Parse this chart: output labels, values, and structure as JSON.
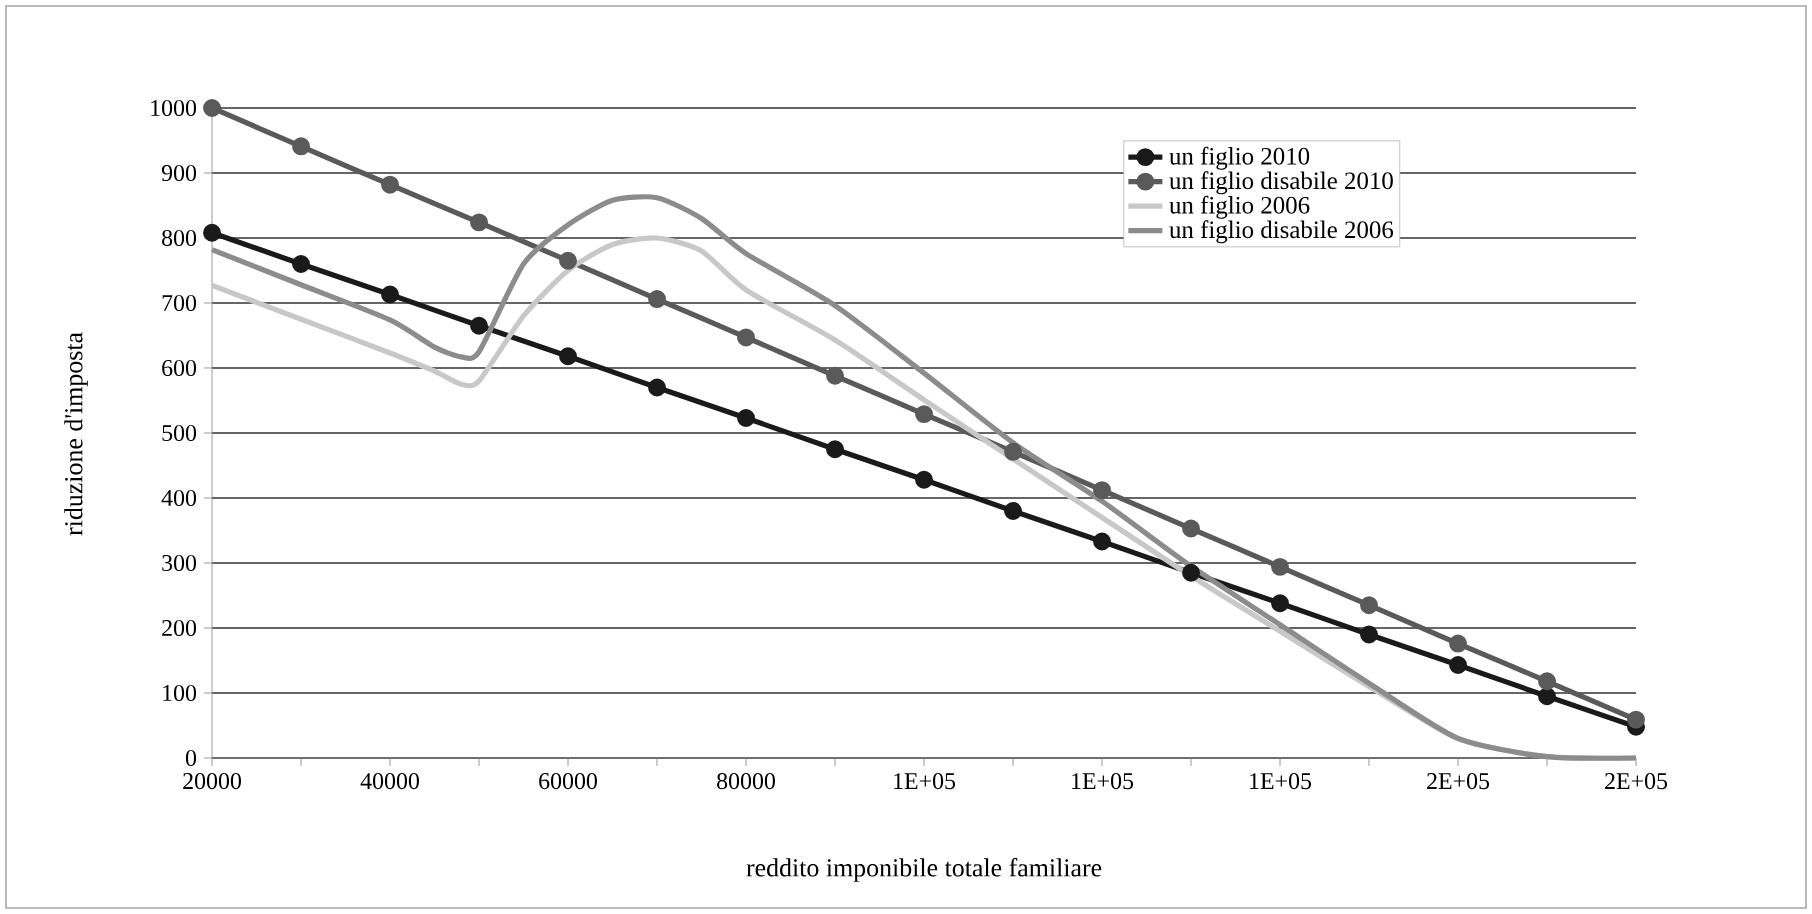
{
  "chart_data": {
    "type": "line",
    "xlabel": "reddito imponibile totale familiare",
    "ylabel": "riduzione d'imposta",
    "x": [
      20000,
      30000,
      40000,
      50000,
      60000,
      70000,
      80000,
      90000,
      100000,
      110000,
      120000,
      130000,
      140000,
      150000,
      160000,
      170000,
      180000
    ],
    "series": [
      {
        "name": "un figlio 2010",
        "color": "#1a1a1a",
        "marker": "circle",
        "values": [
          808,
          760,
          713,
          665,
          618,
          570,
          523,
          475,
          428,
          380,
          333,
          285,
          238,
          190,
          143,
          95,
          48
        ]
      },
      {
        "name": "un figlio disabile 2010",
        "color": "#5a5a5a",
        "marker": "circle",
        "values": [
          1000,
          941,
          882,
          824,
          765,
          706,
          647,
          588,
          529,
          471,
          412,
          353,
          294,
          235,
          176,
          118,
          59
        ]
      },
      {
        "name": "un figlio 2006",
        "color": "#c8c8c8",
        "marker": "none",
        "x": [
          20000,
          30000,
          40000,
          45000,
          48000,
          50000,
          55000,
          60000,
          65000,
          70000,
          75000,
          80000,
          90000,
          100000,
          110000,
          120000,
          130000,
          140000,
          150000,
          160000,
          170000,
          180000
        ],
        "values": [
          727,
          675,
          623,
          595,
          575,
          580,
          680,
          750,
          790,
          800,
          780,
          720,
          643,
          551,
          460,
          370,
          280,
          195,
          110,
          30,
          2,
          0
        ]
      },
      {
        "name": "un figlio disabile 2006",
        "color": "#8c8c8c",
        "marker": "none",
        "x": [
          20000,
          30000,
          40000,
          45000,
          48000,
          50000,
          55000,
          60000,
          65000,
          70000,
          75000,
          80000,
          90000,
          100000,
          110000,
          120000,
          130000,
          140000,
          150000,
          160000,
          170000,
          180000
        ],
        "values": [
          782,
          728,
          674,
          632,
          617,
          625,
          760,
          820,
          858,
          862,
          830,
          776,
          696,
          592,
          485,
          395,
          295,
          205,
          115,
          30,
          2,
          0
        ]
      }
    ],
    "xlim": [
      20000,
      180000
    ],
    "xticks": [
      20000,
      {
        "value": 30000,
        "label": null
      },
      40000,
      {
        "value": 50000,
        "label": null
      },
      60000,
      {
        "value": 70000,
        "label": null
      },
      80000,
      {
        "value": 90000,
        "label": null
      },
      {
        "value": 100000,
        "label": "1E+05"
      },
      {
        "value": 110000,
        "label": null
      },
      {
        "value": 120000,
        "label": "1E+05"
      },
      {
        "value": 130000,
        "label": null
      },
      {
        "value": 140000,
        "label": "1E+05"
      },
      {
        "value": 150000,
        "label": null
      },
      {
        "value": 160000,
        "label": "2E+05"
      },
      {
        "value": 170000,
        "label": null
      },
      {
        "value": 180000,
        "label": "2E+05"
      }
    ],
    "ylim": [
      0,
      1000
    ],
    "yticks": [
      0,
      100,
      200,
      300,
      400,
      500,
      600,
      700,
      800,
      900,
      1000
    ],
    "grid": "y",
    "legend": "top right",
    "line_style": "solid"
  }
}
